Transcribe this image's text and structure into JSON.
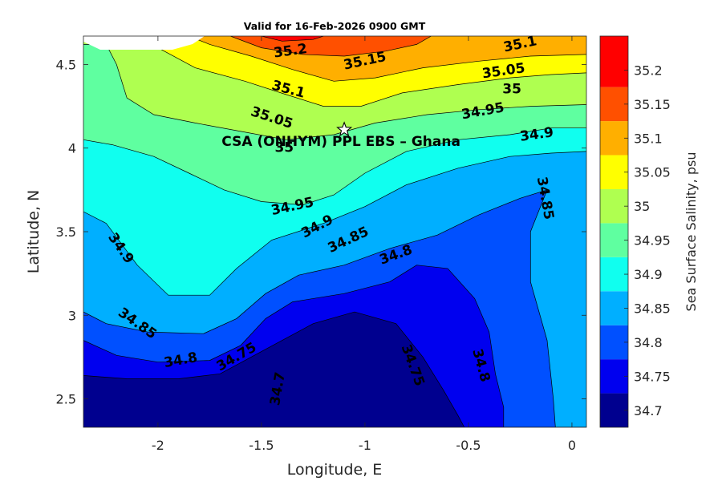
{
  "chart_data": {
    "type": "filled-contour",
    "title": "Valid for 16-Feb-2026 0900 GMT",
    "xlabel": "Longitude, E",
    "ylabel": "Latitude, N",
    "xlim": [
      -2.36,
      0.07
    ],
    "ylim": [
      2.33,
      4.67
    ],
    "x_ticks": [
      -2,
      -1.5,
      -1,
      -0.5,
      0
    ],
    "x_tick_labels": [
      "-2",
      "-1.5",
      "-1",
      "-0.5",
      "0"
    ],
    "y_ticks": [
      2.5,
      3,
      3.5,
      4,
      4.5
    ],
    "y_tick_labels": [
      "2.5",
      "3",
      "3.5",
      "4",
      "4.5"
    ],
    "colorbar": {
      "label": "Sea Surface Salinity, psu",
      "range": [
        34.675,
        35.25
      ],
      "levels": [
        34.7,
        34.75,
        34.8,
        34.85,
        34.9,
        34.95,
        35,
        35.05,
        35.1,
        35.15,
        35.2
      ],
      "tick_labels": [
        "34.7",
        "34.75",
        "34.8",
        "34.85",
        "34.9",
        "34.95",
        "35",
        "35.05",
        "35.1",
        "35.15",
        "35.2"
      ],
      "colors": [
        "#00008f",
        "#0000ef",
        "#0050ff",
        "#00afff",
        "#10ffef",
        "#5fffa0",
        "#afff50",
        "#ffff00",
        "#ffaf00",
        "#ff5000",
        "#ff0000"
      ]
    },
    "contours": [
      {
        "level": 34.75,
        "color": "#0000ef",
        "points": [
          [
            -2.36,
            2.64
          ],
          [
            -2.15,
            2.62
          ],
          [
            -1.9,
            2.62
          ],
          [
            -1.7,
            2.65
          ],
          [
            -1.55,
            2.75
          ],
          [
            -1.4,
            2.85
          ],
          [
            -1.25,
            2.95
          ],
          [
            -1.05,
            3.02
          ],
          [
            -0.85,
            2.95
          ],
          [
            -0.72,
            2.75
          ],
          [
            -0.62,
            2.55
          ],
          [
            -0.55,
            2.4
          ],
          [
            -0.52,
            2.33
          ],
          [
            0.07,
            2.33
          ],
          [
            0.07,
            2.33
          ]
        ]
      },
      {
        "level": 34.8,
        "color": "#0050ff",
        "points": [
          [
            -2.36,
            2.85
          ],
          [
            -2.2,
            2.76
          ],
          [
            -2.0,
            2.72
          ],
          [
            -1.75,
            2.73
          ],
          [
            -1.6,
            2.82
          ],
          [
            -1.48,
            2.98
          ],
          [
            -1.35,
            3.08
          ],
          [
            -1.1,
            3.13
          ],
          [
            -0.88,
            3.2
          ],
          [
            -0.75,
            3.3
          ],
          [
            -0.6,
            3.28
          ],
          [
            -0.47,
            3.1
          ],
          [
            -0.4,
            2.9
          ],
          [
            -0.37,
            2.65
          ],
          [
            -0.33,
            2.45
          ],
          [
            -0.33,
            2.33
          ],
          [
            0.07,
            2.33
          ]
        ]
      },
      {
        "level": 34.85,
        "color": "#00afff",
        "points": [
          [
            -2.36,
            3.02
          ],
          [
            -2.25,
            2.95
          ],
          [
            -2.05,
            2.9
          ],
          [
            -1.78,
            2.89
          ],
          [
            -1.62,
            2.98
          ],
          [
            -1.48,
            3.13
          ],
          [
            -1.32,
            3.24
          ],
          [
            -1.1,
            3.3
          ],
          [
            -0.88,
            3.4
          ],
          [
            -0.65,
            3.48
          ],
          [
            -0.45,
            3.6
          ],
          [
            -0.25,
            3.7
          ],
          [
            -0.12,
            3.75
          ],
          [
            -0.2,
            3.5
          ],
          [
            -0.2,
            3.2
          ],
          [
            -0.12,
            2.85
          ],
          [
            -0.09,
            2.5
          ],
          [
            -0.08,
            2.33
          ],
          [
            0.07,
            2.33
          ]
        ]
      },
      {
        "level": 34.9,
        "color": "#10ffef",
        "points": [
          [
            -2.36,
            3.62
          ],
          [
            -2.25,
            3.55
          ],
          [
            -2.1,
            3.3
          ],
          [
            -1.95,
            3.12
          ],
          [
            -1.75,
            3.12
          ],
          [
            -1.62,
            3.28
          ],
          [
            -1.45,
            3.45
          ],
          [
            -1.2,
            3.55
          ],
          [
            -1.0,
            3.65
          ],
          [
            -0.8,
            3.78
          ],
          [
            -0.55,
            3.88
          ],
          [
            -0.3,
            3.95
          ],
          [
            -0.1,
            3.97
          ],
          [
            0.07,
            3.98
          ]
        ]
      },
      {
        "level": 34.95,
        "color": "#5fffa0",
        "points": [
          [
            -2.36,
            4.05
          ],
          [
            -2.22,
            4.02
          ],
          [
            -2.02,
            3.95
          ],
          [
            -1.85,
            3.85
          ],
          [
            -1.68,
            3.75
          ],
          [
            -1.5,
            3.68
          ],
          [
            -1.3,
            3.66
          ],
          [
            -1.15,
            3.72
          ],
          [
            -1.0,
            3.85
          ],
          [
            -0.8,
            3.98
          ],
          [
            -0.55,
            4.05
          ],
          [
            -0.3,
            4.08
          ],
          [
            -0.1,
            4.12
          ],
          [
            0.07,
            4.12
          ]
        ]
      },
      {
        "level": 35.0,
        "color": "#afff50",
        "points": [
          [
            -2.36,
            4.62
          ],
          [
            -2.25,
            4.62
          ],
          [
            -2.2,
            4.5
          ],
          [
            -2.15,
            4.3
          ],
          [
            -2.02,
            4.2
          ],
          [
            -1.82,
            4.15
          ],
          [
            -1.6,
            4.1
          ],
          [
            -1.38,
            4.05
          ],
          [
            -1.15,
            4.08
          ],
          [
            -0.95,
            4.15
          ],
          [
            -0.7,
            4.2
          ],
          [
            -0.45,
            4.23
          ],
          [
            -0.2,
            4.25
          ],
          [
            0.07,
            4.26
          ]
        ]
      },
      {
        "level": 35.05,
        "color": "#ffff00",
        "points": [
          [
            -2.36,
            4.67
          ],
          [
            -2.1,
            4.67
          ],
          [
            -2.0,
            4.6
          ],
          [
            -1.82,
            4.48
          ],
          [
            -1.58,
            4.4
          ],
          [
            -1.38,
            4.32
          ],
          [
            -1.2,
            4.25
          ],
          [
            -1.02,
            4.25
          ],
          [
            -0.82,
            4.33
          ],
          [
            -0.55,
            4.38
          ],
          [
            -0.3,
            4.42
          ],
          [
            -0.1,
            4.44
          ],
          [
            0.07,
            4.45
          ]
        ]
      },
      {
        "level": 35.1,
        "color": "#ffaf00",
        "points": [
          [
            -1.85,
            4.67
          ],
          [
            -1.75,
            4.62
          ],
          [
            -1.55,
            4.55
          ],
          [
            -1.35,
            4.47
          ],
          [
            -1.15,
            4.4
          ],
          [
            -0.95,
            4.42
          ],
          [
            -0.72,
            4.48
          ],
          [
            -0.45,
            4.52
          ],
          [
            -0.2,
            4.55
          ],
          [
            0.07,
            4.56
          ]
        ]
      },
      {
        "level": 35.15,
        "color": "#ff5000",
        "points": [
          [
            -1.65,
            4.67
          ],
          [
            -1.5,
            4.6
          ],
          [
            -1.3,
            4.56
          ],
          [
            -1.1,
            4.55
          ],
          [
            -0.9,
            4.58
          ],
          [
            -0.75,
            4.62
          ],
          [
            -0.68,
            4.67
          ]
        ]
      },
      {
        "level": 35.2,
        "color": "#ff0000",
        "points": [
          [
            -1.5,
            4.67
          ],
          [
            -1.4,
            4.64
          ],
          [
            -1.25,
            4.65
          ],
          [
            -1.2,
            4.67
          ]
        ]
      }
    ],
    "contour_labels": [
      {
        "text": "35.2",
        "x": -1.36,
        "y": 4.58,
        "rotate": -8
      },
      {
        "text": "35.15",
        "x": -1.0,
        "y": 4.52,
        "rotate": -12
      },
      {
        "text": "35.1",
        "x": -0.25,
        "y": 4.62,
        "rotate": -12
      },
      {
        "text": "35.05",
        "x": -0.33,
        "y": 4.46,
        "rotate": -8
      },
      {
        "text": "35.1",
        "x": -1.37,
        "y": 4.35,
        "rotate": 15
      },
      {
        "text": "35.05",
        "x": -1.45,
        "y": 4.18,
        "rotate": 18
      },
      {
        "text": "35",
        "x": -0.29,
        "y": 4.35,
        "rotate": 0
      },
      {
        "text": "34.95",
        "x": -0.43,
        "y": 4.22,
        "rotate": -10
      },
      {
        "text": "35",
        "x": -1.39,
        "y": 4.0,
        "rotate": 0
      },
      {
        "text": "34.9",
        "x": -0.17,
        "y": 4.08,
        "rotate": -8
      },
      {
        "text": "34.85",
        "x": -0.13,
        "y": 3.7,
        "rotate": 80
      },
      {
        "text": "34.95",
        "x": -1.35,
        "y": 3.65,
        "rotate": -12
      },
      {
        "text": "34.9",
        "x": -1.23,
        "y": 3.53,
        "rotate": -28
      },
      {
        "text": "34.85",
        "x": -1.08,
        "y": 3.45,
        "rotate": -25
      },
      {
        "text": "34.8",
        "x": -0.85,
        "y": 3.36,
        "rotate": -20
      },
      {
        "text": "34.9",
        "x": -2.18,
        "y": 3.4,
        "rotate": 55
      },
      {
        "text": "34.85",
        "x": -2.1,
        "y": 2.95,
        "rotate": 35
      },
      {
        "text": "34.8",
        "x": -1.89,
        "y": 2.73,
        "rotate": -10
      },
      {
        "text": "34.75",
        "x": -1.62,
        "y": 2.75,
        "rotate": -30
      },
      {
        "text": "34.7",
        "x": -1.42,
        "y": 2.56,
        "rotate": -80
      },
      {
        "text": "34.75",
        "x": -0.77,
        "y": 2.7,
        "rotate": 70
      },
      {
        "text": "34.8",
        "x": -0.44,
        "y": 2.7,
        "rotate": 75
      }
    ],
    "marker": {
      "label": "CSA (ONHYM) PPL EBS  – Ghana",
      "x": -1.1,
      "y": 4.11,
      "symbol": "star"
    },
    "land_mask_note": "white region top-left"
  }
}
